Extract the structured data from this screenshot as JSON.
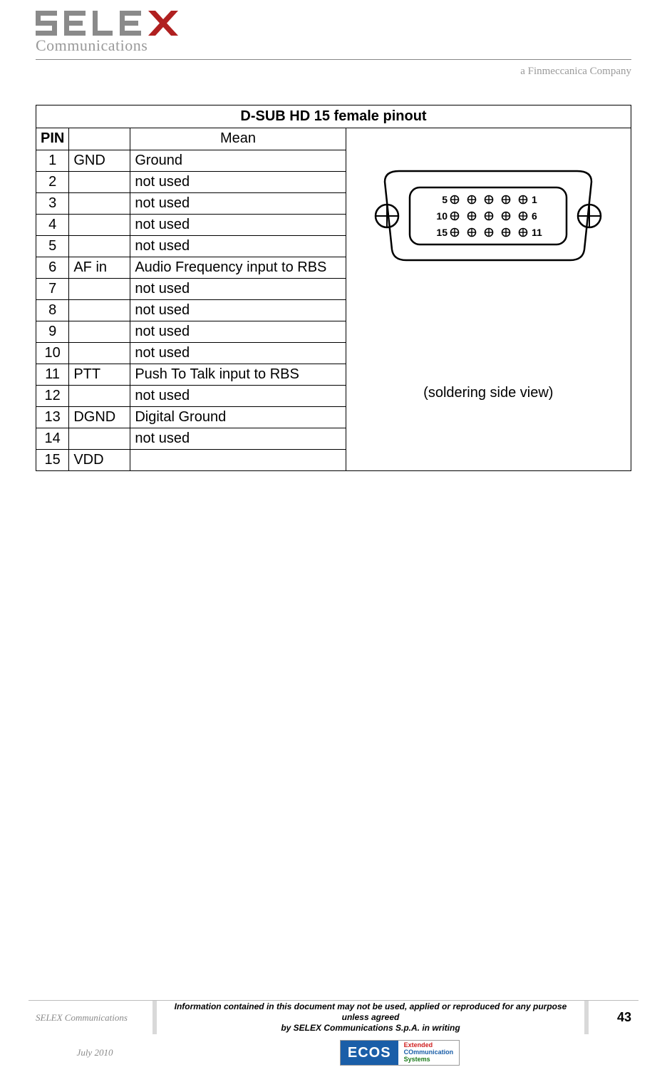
{
  "header": {
    "logo_text": "Communications",
    "logo_bar_color": "#8a8a8a",
    "logo_accent_color": "#b02020",
    "tagline": "a Finmeccanica Company"
  },
  "table": {
    "title": "D-SUB HD 15 female pinout",
    "col_pin": "PIN",
    "col_mean": "Mean",
    "rows": [
      {
        "pin": "1",
        "sig": "GND",
        "mean": "Ground"
      },
      {
        "pin": "2",
        "sig": "",
        "mean": "not used"
      },
      {
        "pin": "3",
        "sig": "",
        "mean": "not used"
      },
      {
        "pin": "4",
        "sig": "",
        "mean": "not used"
      },
      {
        "pin": "5",
        "sig": "",
        "mean": "not used"
      },
      {
        "pin": "6",
        "sig": "AF in",
        "mean": "Audio Frequency input to RBS"
      },
      {
        "pin": "7",
        "sig": "",
        "mean": "not used"
      },
      {
        "pin": "8",
        "sig": "",
        "mean": "not used"
      },
      {
        "pin": "9",
        "sig": "",
        "mean": "not used"
      },
      {
        "pin": "10",
        "sig": "",
        "mean": "not used"
      },
      {
        "pin": "11",
        "sig": "PTT",
        "mean": "Push To Talk input to RBS"
      },
      {
        "pin": "12",
        "sig": "",
        "mean": "not used"
      },
      {
        "pin": "13",
        "sig": "DGND",
        "mean": "Digital Ground"
      },
      {
        "pin": "14",
        "sig": "",
        "mean": "not used"
      },
      {
        "pin": "15",
        "sig": "VDD",
        "mean": ""
      }
    ],
    "caption": "(soldering side view)",
    "diagram": {
      "row1_left": "5",
      "row1_right": "1",
      "row2_left": "10",
      "row2_right": "6",
      "row3_left": "15",
      "row3_right": "11",
      "stroke": "#000000",
      "label_fontsize": 14
    }
  },
  "footer": {
    "company": "SELEX Communications",
    "disclaimer_l1": "Information contained in this document may not be used, applied or reproduced for any purpose unless agreed",
    "disclaimer_l2": "by SELEX Communications S.p.A. in writing",
    "page_number": "43",
    "date": "July 2010",
    "ecos_logo": "ECOS",
    "ecos_l1": "Extended",
    "ecos_l2": "COmmunication",
    "ecos_l3": "Systems"
  }
}
